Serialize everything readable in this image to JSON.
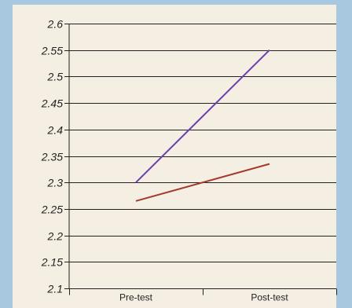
{
  "chart_data": {
    "type": "line",
    "title": "",
    "xlabel": "",
    "ylabel": "",
    "categories": [
      "Pre-test",
      "Post-test"
    ],
    "ylim": [
      2.1,
      2.6
    ],
    "yticks": [
      "2.6",
      "2.55",
      "2.5",
      "2.45",
      "2.4",
      "2.35",
      "2.3",
      "2.25",
      "2.2",
      "2.15",
      "2.1"
    ],
    "grid": true,
    "legend": "none",
    "series": [
      {
        "values": [
          2.3,
          2.55
        ],
        "color": "#6a3fb0"
      },
      {
        "values": [
          2.265,
          2.335
        ],
        "color": "#a33a2e"
      }
    ]
  }
}
